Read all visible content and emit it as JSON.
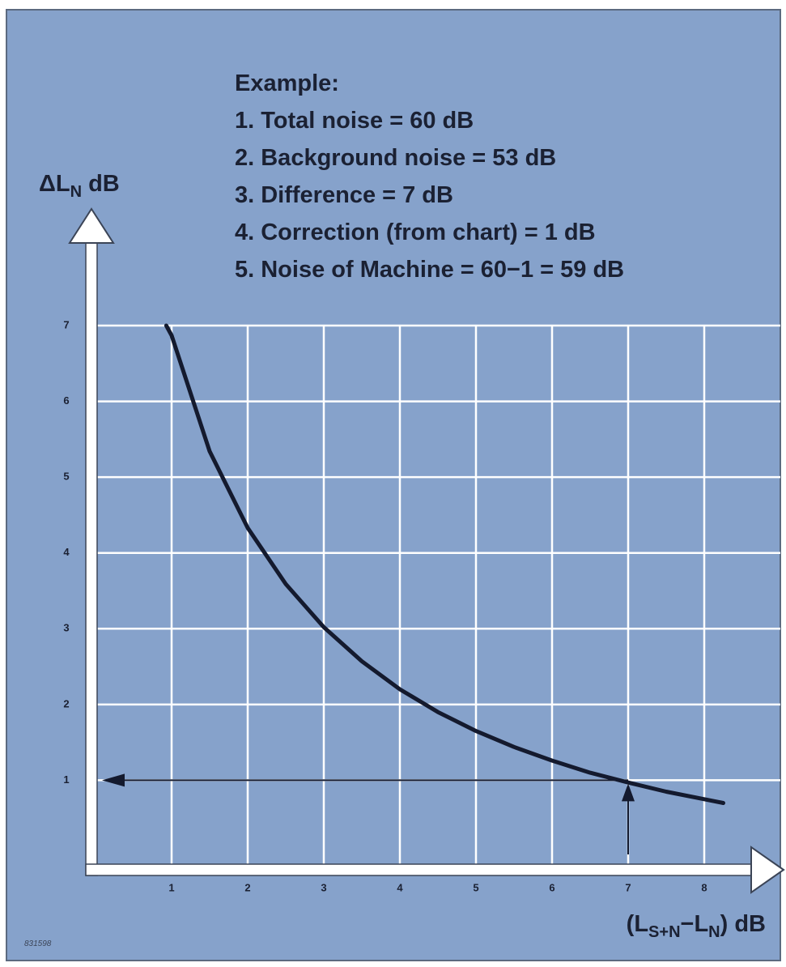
{
  "chart_data": {
    "type": "line",
    "annotation_lines": [
      "Example:",
      "1. Total noise = 60 dB",
      "2. Background noise = 53 dB",
      "3. Difference = 7 dB",
      "4. Correction (from chart) = 1 dB",
      "5. Noise of Machine = 60−1 = 59 dB"
    ],
    "ylabel": [
      "ΔL",
      "N",
      " dB"
    ],
    "xlabel": [
      "(L",
      "S+N",
      "−L",
      "N",
      ") dB"
    ],
    "figure_code": "831598",
    "x": [
      0.93,
      1,
      1.5,
      2,
      2.5,
      3,
      3.5,
      4,
      4.5,
      5,
      5.5,
      6,
      6.5,
      7,
      7.5,
      8,
      8.25
    ],
    "values": [
      7.0,
      6.87,
      5.34,
      4.33,
      3.59,
      3.02,
      2.57,
      2.2,
      1.9,
      1.65,
      1.44,
      1.26,
      1.1,
      0.97,
      0.85,
      0.75,
      0.7
    ],
    "color": "#141a2e",
    "example_reading": {
      "x": 7,
      "y": 1
    },
    "xlim": [
      0,
      9
    ],
    "ylim": [
      0,
      7
    ],
    "xticks": [
      1,
      2,
      3,
      4,
      5,
      6,
      7,
      8
    ],
    "yticks": [
      1,
      2,
      3,
      4,
      5,
      6,
      7
    ],
    "grid": true
  }
}
